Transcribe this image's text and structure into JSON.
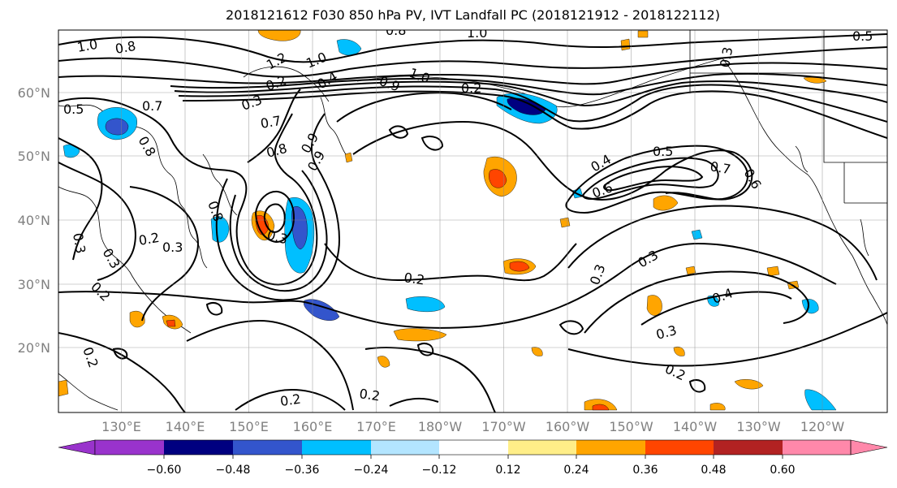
{
  "title": "2018121612 F030 850 hPa PV, IVT Landfall PC (2018121912 - 2018122112)",
  "lat_labels": [
    "60°N",
    "50°N",
    "40°N",
    "30°N",
    "20°N"
  ],
  "lon_labels": [
    "130°E",
    "140°E",
    "150°E",
    "160°E",
    "170°E",
    "180°W",
    "170°W",
    "160°W",
    "150°W",
    "140°W",
    "130°W",
    "120°W"
  ],
  "colorbar": {
    "colors": [
      "#9933cc",
      "#000080",
      "#3355cc",
      "#00bfff",
      "#b3e5ff",
      "#ffffff",
      "#ffee88",
      "#ffa500",
      "#ff4500",
      "#b22222",
      "#ff88aa"
    ],
    "ticks": [
      "−0.60",
      "−0.48",
      "−0.36",
      "−0.24",
      "−0.12",
      "0.12",
      "0.24",
      "0.36",
      "0.48",
      "0.60"
    ]
  },
  "contour_labels": [
    "1.0",
    "0.8",
    "1.2",
    "1.0",
    "0.8",
    "1.0",
    "0.9",
    "1.0",
    "0.2",
    "0.5",
    "0.7",
    "0.3",
    "0.2",
    "0.4",
    "0.8",
    "0.7",
    "0.8",
    "0.9",
    "0.9",
    "0.3",
    "0.8",
    "0.3",
    "0.2",
    "0.3",
    "0.2",
    "0.3",
    "0.2",
    "0.2",
    "0.2",
    "0.2",
    "0.4",
    "0.5",
    "0.7",
    "0.6",
    "0.6",
    "0.3",
    "0.3",
    "0.4",
    "0.3",
    "0.2",
    "0.3",
    "0.5"
  ]
}
